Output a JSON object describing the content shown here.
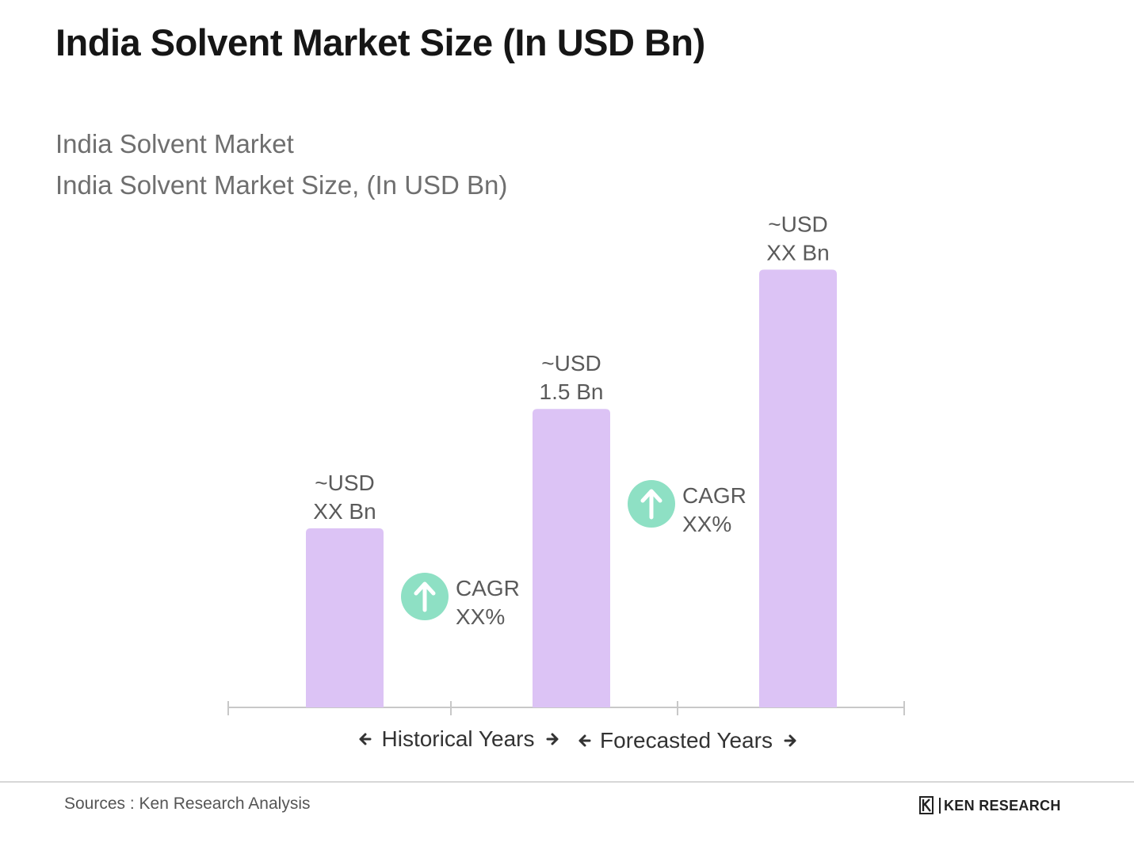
{
  "header": {
    "title": "India Solvent Market Size (In USD Bn)",
    "subtitle_line1": "India Solvent Market",
    "subtitle_line2": "India Solvent Market Size, (In USD Bn)"
  },
  "chart_data": {
    "type": "bar",
    "categories": [
      "",
      "",
      ""
    ],
    "values": [
      0.9,
      1.5,
      2.2
    ],
    "data_labels": [
      [
        "~USD",
        "XX Bn"
      ],
      [
        "~USD",
        "1.5 Bn"
      ],
      [
        "~USD",
        "XX Bn"
      ]
    ],
    "bar_color": "#dcc3f5",
    "ylim": [
      0,
      2.5
    ],
    "grid": false,
    "cagr_badges": [
      {
        "line1": "CAGR",
        "line2": "XX%"
      },
      {
        "line1": "CAGR",
        "line2": "XX%"
      }
    ],
    "badge_color": "#8ee0c4",
    "axis_sections": [
      {
        "label": "Historical Years"
      },
      {
        "label": "Forecasted Years"
      }
    ]
  },
  "footer": {
    "source": "Sources : Ken Research Analysis",
    "logo_text": "KEN RESEARCH",
    "logo_icon": "k-logo-icon"
  }
}
